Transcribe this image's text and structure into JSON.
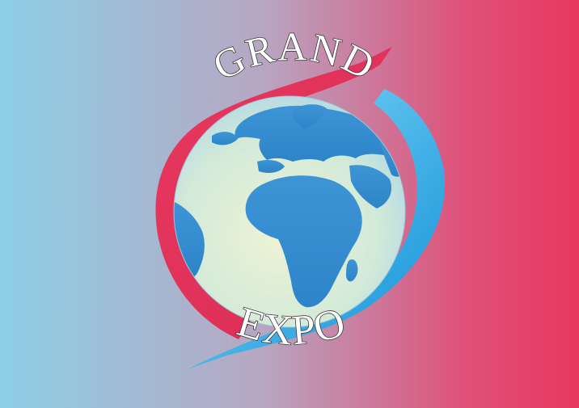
{
  "logo": {
    "top_word": "GRAND",
    "bottom_word": "EXPO"
  },
  "colors": {
    "background_left": "#8ccfe6",
    "background_right": "#e8385f",
    "ring_red": "#e0345c",
    "ring_blue": "#1fa4e0",
    "ocean": "#d6ebe0",
    "land": "#3a8fd0"
  },
  "icons": [
    "globe-icon"
  ]
}
